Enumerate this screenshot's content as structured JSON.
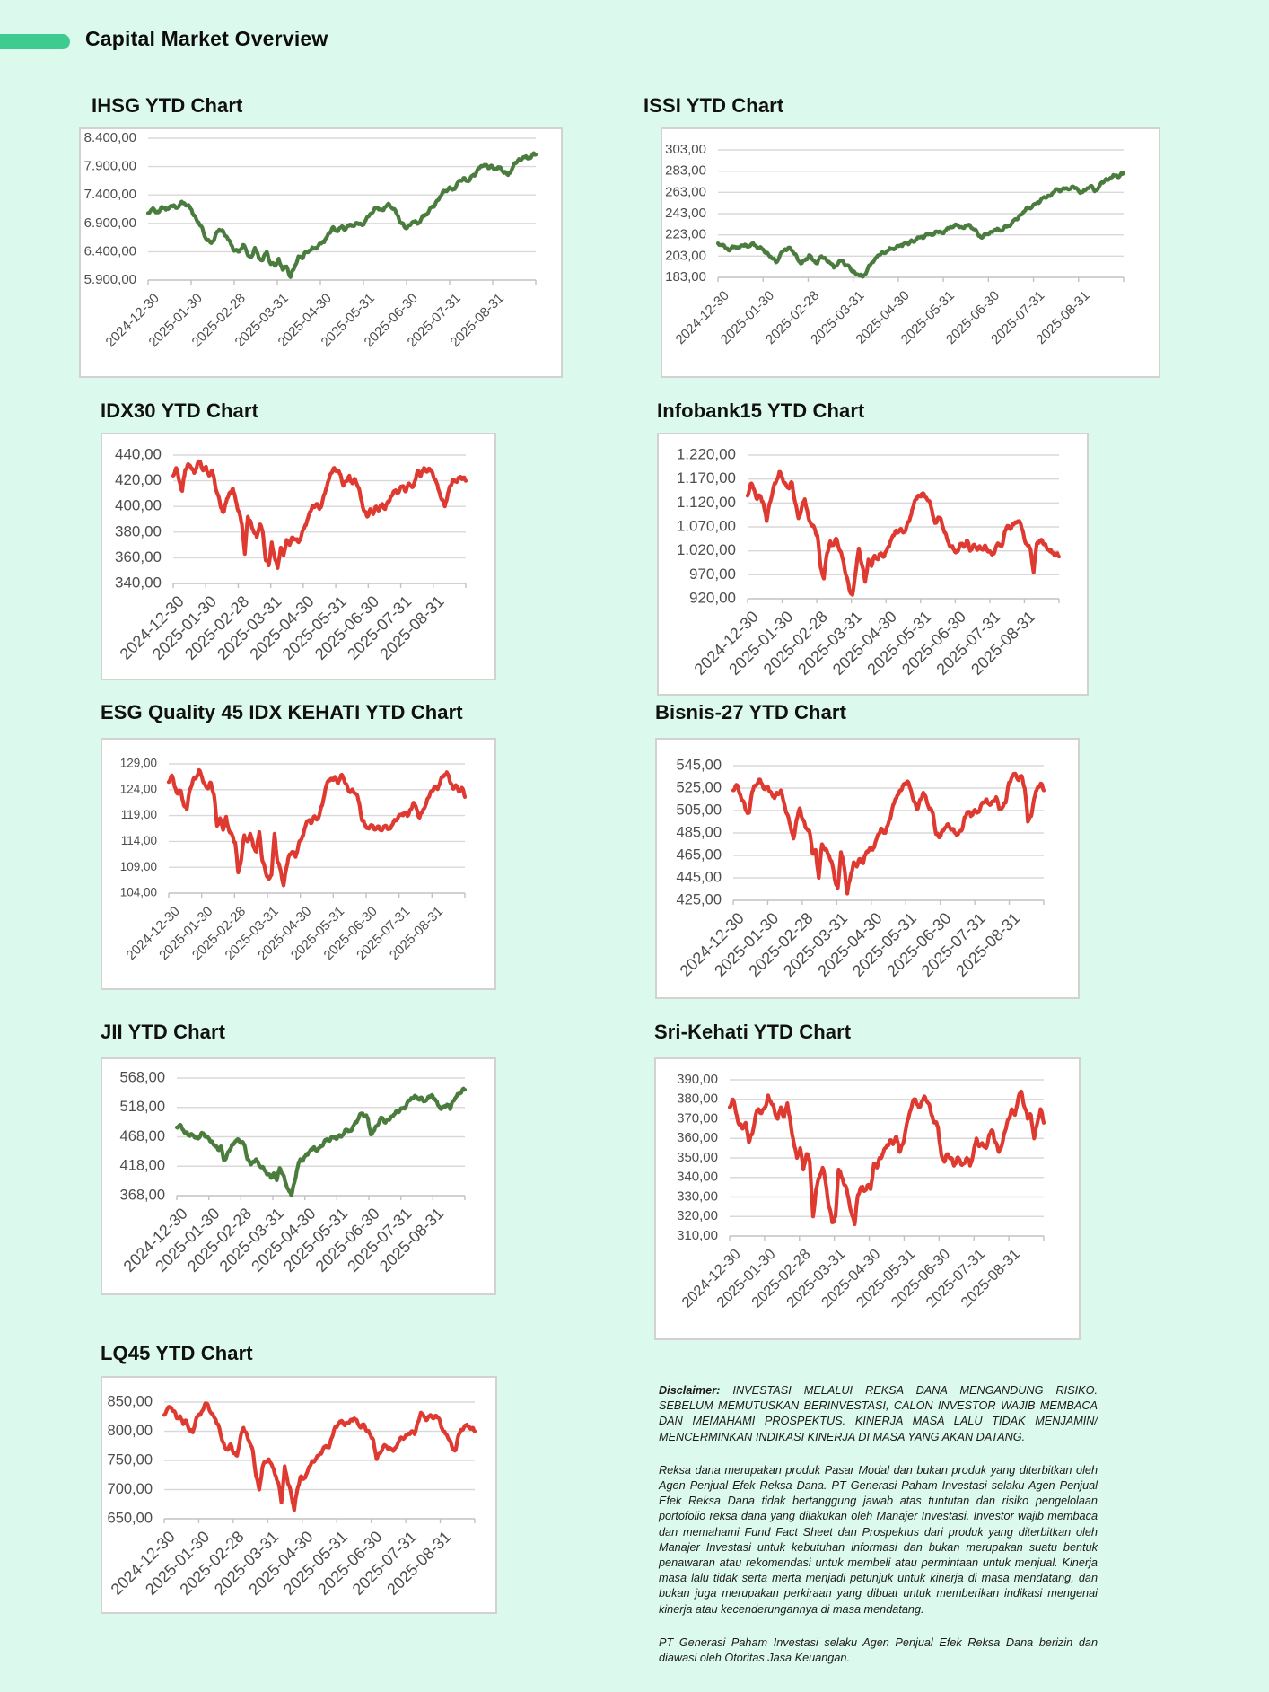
{
  "page": {
    "bg": "#dcf9ee",
    "accent": "#3dcb90",
    "title": "Capital Market Overview"
  },
  "x_labels": [
    "2024-12-30",
    "2025-01-30",
    "2025-02-28",
    "2025-03-31",
    "2025-04-30",
    "2025-05-31",
    "2025-06-30",
    "2025-07-31",
    "2025-08-31"
  ],
  "chart_data": [
    {
      "name": "IHSG",
      "type": "line",
      "title": "IHSG YTD Chart",
      "series_color": "#4a7c3e",
      "ylim": [
        5900,
        8400
      ],
      "ytick_step": 500,
      "daily_volatility": 34,
      "y_tick_labels": [
        "8.400,00",
        "7.900,00",
        "7.400,00",
        "6.900,00",
        "6.400,00",
        "5.900,00"
      ],
      "values": [
        7080,
        7150,
        7090,
        7130,
        7180,
        7150,
        7210,
        7170,
        7230,
        7260,
        7220,
        7140,
        7010,
        6880,
        6740,
        6600,
        6550,
        6680,
        6790,
        6760,
        6650,
        6520,
        6420,
        6400,
        6520,
        6380,
        6300,
        6470,
        6280,
        6250,
        6400,
        6180,
        6150,
        6280,
        6080,
        6140,
        5950,
        6120,
        6320,
        6280,
        6400,
        6420,
        6460,
        6500,
        6560,
        6640,
        6730,
        6820,
        6760,
        6850,
        6800,
        6880,
        6850,
        6900,
        6870,
        6950,
        7050,
        7120,
        7180,
        7140,
        7190,
        7230,
        7150,
        7050,
        6900,
        6820,
        6870,
        6930,
        6890,
        6970,
        7040,
        7120,
        7200,
        7300,
        7380,
        7460,
        7520,
        7490,
        7580,
        7650,
        7700,
        7640,
        7740,
        7800,
        7900,
        7930,
        7870,
        7910,
        7850,
        7890,
        7790,
        7750,
        7860,
        7960,
        8020,
        8070,
        8040,
        8090,
        8110
      ]
    },
    {
      "name": "ISSI",
      "type": "line",
      "title": "ISSI YTD Chart",
      "series_color": "#4a7c3e",
      "ylim": [
        183,
        303
      ],
      "ytick_step": 20,
      "daily_volatility": 1.6,
      "y_tick_labels": [
        "303,00",
        "283,00",
        "263,00",
        "243,00",
        "223,00",
        "203,00",
        "183,00"
      ],
      "values": [
        215,
        213,
        210,
        209,
        212,
        211,
        213,
        212,
        214,
        213,
        211,
        209,
        206,
        201,
        197,
        204,
        209,
        211,
        208,
        203,
        196,
        199,
        204,
        199,
        196,
        203,
        201,
        197,
        192,
        196,
        199,
        194,
        191,
        188,
        185,
        183.5,
        189,
        196,
        201,
        204,
        206,
        208,
        210,
        211,
        213,
        215,
        214,
        217,
        219,
        221,
        222,
        224,
        223,
        226,
        225,
        227,
        230,
        231,
        232,
        230,
        232,
        231,
        228,
        222,
        221,
        224,
        226,
        228,
        227,
        229,
        231,
        234,
        238,
        242,
        245,
        248,
        250,
        253,
        256,
        258,
        260,
        263,
        266,
        265,
        267,
        266,
        268,
        265,
        263,
        266,
        269,
        264,
        268,
        272,
        275,
        277,
        279,
        278,
        281
      ]
    },
    {
      "name": "IDX30",
      "type": "line",
      "title": "IDX30 YTD Chart",
      "series_color": "#df3a31",
      "ylim": [
        340,
        440
      ],
      "ytick_step": 20,
      "daily_volatility": 1.5,
      "y_tick_labels": [
        "440,00",
        "420,00",
        "400,00",
        "380,00",
        "360,00",
        "340,00"
      ],
      "values": [
        424,
        430,
        420,
        412,
        428,
        433,
        430,
        426,
        432,
        435,
        428,
        431,
        424,
        428,
        417,
        409,
        399,
        396,
        406,
        411,
        414,
        404,
        396,
        386,
        363,
        392,
        388,
        380,
        376,
        386,
        380,
        358,
        354,
        372,
        360,
        352,
        368,
        362,
        374,
        370,
        376,
        374,
        372,
        378,
        384,
        390,
        396,
        400,
        402,
        398,
        404,
        412,
        420,
        426,
        430,
        428,
        425,
        416,
        420,
        424,
        418,
        421,
        415,
        405,
        396,
        392,
        398,
        394,
        400,
        397,
        402,
        398,
        404,
        408,
        412,
        410,
        414,
        416,
        412,
        418,
        415,
        420,
        428,
        424,
        430,
        427,
        429,
        425,
        420,
        412,
        405,
        400,
        410,
        416,
        421,
        419,
        423,
        422,
        420
      ]
    },
    {
      "name": "Infobank15",
      "type": "line",
      "title": "Infobank15 YTD Chart",
      "series_color": "#df3a31",
      "ylim": [
        920,
        1220
      ],
      "ytick_step": 50,
      "daily_volatility": 4.4,
      "y_tick_labels": [
        "1.220,00",
        "1.170,00",
        "1.120,00",
        "1.070,00",
        "1.020,00",
        "970,00",
        "920,00"
      ],
      "values": [
        1135,
        1160,
        1148,
        1128,
        1135,
        1118,
        1082,
        1120,
        1148,
        1165,
        1185,
        1172,
        1160,
        1150,
        1162,
        1120,
        1088,
        1110,
        1128,
        1095,
        1075,
        1068,
        1052,
        985,
        962,
        1015,
        1040,
        1032,
        1045,
        1020,
        1002,
        968,
        940,
        928,
        975,
        1025,
        990,
        955,
        1002,
        988,
        1010,
        1002,
        1015,
        1008,
        1025,
        1040,
        1052,
        1060,
        1065,
        1058,
        1070,
        1085,
        1110,
        1128,
        1135,
        1140,
        1132,
        1125,
        1105,
        1078,
        1090,
        1082,
        1058,
        1040,
        1028,
        1022,
        1018,
        1035,
        1028,
        1042,
        1020,
        1032,
        1025,
        1030,
        1022,
        1028,
        1018,
        1012,
        1025,
        1035,
        1030,
        1062,
        1072,
        1068,
        1078,
        1082,
        1075,
        1048,
        1032,
        1025,
        975,
        1035,
        1042,
        1035,
        1028,
        1020,
        1015,
        1012,
        1008
      ]
    },
    {
      "name": "ESG",
      "type": "line",
      "title": "ESG Quality 45 IDX KEHATI YTD Chart",
      "series_color": "#df3a31",
      "ylim": [
        104,
        129
      ],
      "ytick_step": 5,
      "daily_volatility": 0.36,
      "y_tick_labels": [
        "129,00",
        "124,00",
        "119,00",
        "114,00",
        "109,00",
        "104,00"
      ],
      "values": [
        125.5,
        126.8,
        124.5,
        123.2,
        123.8,
        121.0,
        120.2,
        124.0,
        125.8,
        126.2,
        127.8,
        126.5,
        125.0,
        124.2,
        125.3,
        123.0,
        117.0,
        118.5,
        116.2,
        118.8,
        116.0,
        115.2,
        113.8,
        108.0,
        110.5,
        115.2,
        114.0,
        115.5,
        113.0,
        112.0,
        115.8,
        110.2,
        108.2,
        106.8,
        107.5,
        115.5,
        110.0,
        108.5,
        105.5,
        109.0,
        111.5,
        112.0,
        111.0,
        113.5,
        114.5,
        116.5,
        118.0,
        117.5,
        118.8,
        118.2,
        119.5,
        121.5,
        124.5,
        125.8,
        126.0,
        126.5,
        125.2,
        126.8,
        126.0,
        124.8,
        123.5,
        123.8,
        123.2,
        121.5,
        118.0,
        117.2,
        116.5,
        117.2,
        116.3,
        116.8,
        116.2,
        116.6,
        117.0,
        116.4,
        117.2,
        118.0,
        118.8,
        119.2,
        119.6,
        118.9,
        120.2,
        121.5,
        120.3,
        118.6,
        119.9,
        121.0,
        122.5,
        123.8,
        124.6,
        124.1,
        125.9,
        126.6,
        127.4,
        125.6,
        124.2,
        124.9,
        123.6,
        124.4,
        122.6
      ]
    },
    {
      "name": "Bisnis27",
      "type": "line",
      "title": "Bisnis-27 YTD Chart",
      "series_color": "#df3a31",
      "ylim": [
        425,
        545
      ],
      "ytick_step": 20,
      "daily_volatility": 1.8,
      "y_tick_labels": [
        "545,00",
        "525,00",
        "505,00",
        "485,00",
        "465,00",
        "445,00",
        "425,00"
      ],
      "values": [
        523,
        528,
        520,
        514,
        505,
        503,
        522,
        527,
        532,
        529,
        524,
        526,
        521,
        516,
        520,
        523,
        512,
        502,
        492,
        480,
        497,
        507,
        497,
        489,
        487,
        467,
        470,
        445,
        475,
        470,
        466,
        460,
        444,
        436,
        468,
        455,
        431,
        446,
        459,
        455,
        462,
        458,
        468,
        471,
        470,
        478,
        484,
        488,
        485,
        494,
        504,
        514,
        519,
        523,
        529,
        531,
        524,
        513,
        506,
        515,
        521,
        514,
        506,
        503,
        484,
        481,
        487,
        490,
        492,
        488,
        485,
        484,
        487,
        499,
        504,
        500,
        505,
        503,
        508,
        512,
        515,
        510,
        513,
        517,
        506,
        508,
        512,
        530,
        535,
        538,
        532,
        536,
        525,
        495,
        500,
        516,
        525,
        529,
        523
      ]
    },
    {
      "name": "JII",
      "type": "line",
      "title": "JII YTD Chart",
      "series_color": "#4a7c3e",
      "ylim": [
        368,
        568
      ],
      "ytick_step": 50,
      "daily_volatility": 2.8,
      "y_tick_labels": [
        "568,00",
        "518,00",
        "468,00",
        "418,00",
        "368,00"
      ],
      "values": [
        484,
        488,
        480,
        475,
        470,
        473,
        467,
        465,
        470,
        474,
        468,
        465,
        460,
        452,
        446,
        452,
        428,
        436,
        446,
        456,
        461,
        463,
        459,
        455,
        430,
        422,
        426,
        430,
        419,
        416,
        410,
        404,
        398,
        406,
        394,
        415,
        405,
        390,
        378,
        368,
        390,
        414,
        430,
        428,
        438,
        442,
        446,
        448,
        445,
        452,
        458,
        464,
        461,
        468,
        465,
        470,
        468,
        476,
        480,
        478,
        486,
        492,
        502,
        508,
        503,
        500,
        472,
        478,
        486,
        496,
        500,
        492,
        498,
        503,
        506,
        510,
        514,
        517,
        520,
        530,
        534,
        538,
        532,
        535,
        528,
        531,
        536,
        538,
        531,
        521,
        515,
        519,
        523,
        515,
        529,
        536,
        541,
        546,
        548
      ]
    },
    {
      "name": "SriKehati",
      "type": "line",
      "title": "Sri-Kehati YTD Chart",
      "series_color": "#df3a31",
      "ylim": [
        310,
        390
      ],
      "ytick_step": 10,
      "daily_volatility": 1.15,
      "y_tick_labels": [
        "390,00",
        "380,00",
        "370,00",
        "360,00",
        "350,00",
        "340,00",
        "330,00",
        "320,00",
        "310,00"
      ],
      "values": [
        376,
        380,
        373,
        367,
        365,
        368,
        358,
        362,
        371,
        375,
        373,
        376,
        382,
        378,
        374,
        370,
        376,
        371,
        378,
        368,
        358,
        350,
        355,
        344,
        352,
        348,
        320,
        334,
        340,
        345,
        337,
        325,
        317,
        320,
        344,
        340,
        336,
        330,
        322,
        316,
        331,
        335,
        333,
        336,
        334,
        347,
        345,
        350,
        353,
        356,
        359,
        357,
        361,
        353,
        357,
        365,
        372,
        378,
        380,
        376,
        379,
        381,
        378,
        372,
        368,
        366,
        352,
        348,
        352,
        350,
        346,
        350,
        348,
        347,
        350,
        346,
        352,
        360,
        356,
        357,
        355,
        362,
        364,
        358,
        353,
        357,
        364,
        370,
        375,
        372,
        380,
        384,
        376,
        370,
        372,
        360,
        368,
        375,
        368
      ]
    },
    {
      "name": "LQ45",
      "type": "line",
      "title": "LQ45 YTD Chart",
      "series_color": "#df3a31",
      "ylim": [
        650,
        850
      ],
      "ytick_step": 50,
      "daily_volatility": 2.8,
      "y_tick_labels": [
        "850,00",
        "800,00",
        "750,00",
        "700,00",
        "650,00"
      ],
      "values": [
        828,
        838,
        841,
        835,
        822,
        826,
        812,
        818,
        801,
        798,
        820,
        829,
        835,
        848,
        841,
        830,
        822,
        812,
        790,
        775,
        768,
        778,
        762,
        758,
        788,
        806,
        796,
        780,
        765,
        722,
        700,
        738,
        748,
        752,
        742,
        725,
        712,
        678,
        740,
        712,
        695,
        665,
        700,
        722,
        718,
        728,
        740,
        748,
        754,
        760,
        768,
        775,
        772,
        790,
        808,
        812,
        818,
        810,
        815,
        820,
        822,
        815,
        806,
        812,
        800,
        795,
        785,
        752,
        762,
        772,
        775,
        770,
        768,
        772,
        782,
        788,
        790,
        795,
        800,
        795,
        815,
        832,
        825,
        820,
        828,
        822,
        826,
        818,
        800,
        795,
        785,
        770,
        768,
        795,
        802,
        810,
        808,
        805,
        800
      ]
    }
  ],
  "disclaimer": {
    "p1_bold": "Disclaimer:",
    "p1": "INVESTASI MELALUI REKSA DANA MENGANDUNG RISIKO. SEBELUM MEMUTUSKAN BERINVESTASI, CALON INVESTOR WAJIB MEMBACA DAN MEMAHAMI PROSPEKTUS. KINERJA MASA LALU TIDAK MENJAMIN/ MENCERMINKAN INDIKASI KINERJA DI MASA YANG AKAN DATANG.",
    "p2": "Reksa dana merupakan produk Pasar Modal dan bukan produk yang diterbitkan oleh Agen Penjual Efek Reksa Dana. PT Generasi Paham Investasi selaku Agen Penjual Efek Reksa Dana tidak bertanggung jawab atas tuntutan dan risiko pengelolaan portofolio reksa dana yang dilakukan oleh Manajer Investasi. Investor wajib membaca dan memahami Fund Fact Sheet dan Prospektus dari produk yang diterbitkan oleh Manajer Investasi untuk kebutuhan informasi dan bukan merupakan suatu bentuk penawaran atau rekomendasi untuk membeli atau permintaan untuk menjual. Kinerja masa lalu tidak serta merta menjadi petunjuk untuk kinerja di masa mendatang, dan bukan juga merupakan perkiraan yang dibuat untuk memberikan indikasi mengenai kinerja atau kecenderungannya di masa mendatang.",
    "p3": "PT Generasi Paham Investasi selaku Agen Penjual Efek Reksa Dana berizin dan diawasi oleh Otoritas Jasa Keuangan."
  }
}
